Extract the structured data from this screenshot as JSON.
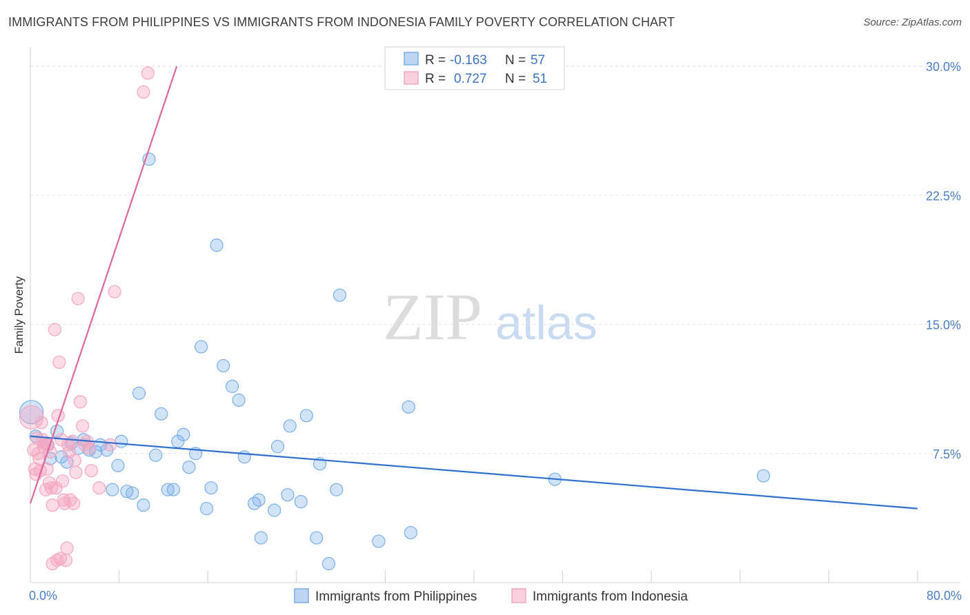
{
  "chart_data": {
    "type": "scatter",
    "title": "IMMIGRANTS FROM PHILIPPINES VS IMMIGRANTS FROM INDONESIA FAMILY POVERTY CORRELATION CHART",
    "source": "Source: ZipAtlas.com",
    "ylabel": "Family Poverty",
    "xlabel": "",
    "xlim": [
      0,
      80
    ],
    "ylim": [
      0,
      31
    ],
    "x_tick_labels": [
      "0.0%",
      "80.0%"
    ],
    "y_ticks": [
      {
        "value": 7.5,
        "label": "7.5%"
      },
      {
        "value": 15.0,
        "label": "15.0%"
      },
      {
        "value": 22.5,
        "label": "22.5%"
      },
      {
        "value": 30.0,
        "label": "30.0%"
      }
    ],
    "grid": true,
    "watermark": {
      "part1": "ZIP",
      "part2": "atlas"
    },
    "legend_stats": [
      {
        "r_label": "R =",
        "r_value": "-0.163",
        "n_label": "N =",
        "n_value": "57"
      },
      {
        "r_label": "R =",
        "r_value": "0.727",
        "n_label": "N =",
        "n_value": "51"
      }
    ],
    "series": [
      {
        "name": "Immigrants from Philippines",
        "color": "#7aaee8",
        "line_color": "#2f6fcf",
        "trend": {
          "x0": 0,
          "y0": 8.5,
          "x1": 80,
          "y1": 4.3
        },
        "points": [
          {
            "x": 0.1,
            "y": 9.9,
            "big": true
          },
          {
            "x": 0.5,
            "y": 8.5
          },
          {
            "x": 1.5,
            "y": 8.0
          },
          {
            "x": 1.8,
            "y": 7.2
          },
          {
            "x": 2.4,
            "y": 8.8
          },
          {
            "x": 2.8,
            "y": 7.3
          },
          {
            "x": 3.3,
            "y": 7.0
          },
          {
            "x": 3.7,
            "y": 8.1
          },
          {
            "x": 4.3,
            "y": 7.8
          },
          {
            "x": 4.8,
            "y": 8.3
          },
          {
            "x": 5.3,
            "y": 7.7
          },
          {
            "x": 5.9,
            "y": 7.6
          },
          {
            "x": 6.3,
            "y": 8.0
          },
          {
            "x": 6.9,
            "y": 7.7
          },
          {
            "x": 7.4,
            "y": 5.4
          },
          {
            "x": 7.9,
            "y": 6.8
          },
          {
            "x": 8.2,
            "y": 8.2
          },
          {
            "x": 8.7,
            "y": 5.3
          },
          {
            "x": 9.2,
            "y": 5.2
          },
          {
            "x": 9.8,
            "y": 11.0
          },
          {
            "x": 10.2,
            "y": 4.5
          },
          {
            "x": 10.7,
            "y": 24.6
          },
          {
            "x": 11.3,
            "y": 7.4
          },
          {
            "x": 11.8,
            "y": 9.8
          },
          {
            "x": 12.4,
            "y": 5.4
          },
          {
            "x": 12.9,
            "y": 5.4
          },
          {
            "x": 13.3,
            "y": 8.2
          },
          {
            "x": 13.8,
            "y": 8.6
          },
          {
            "x": 14.3,
            "y": 6.7
          },
          {
            "x": 14.9,
            "y": 7.5
          },
          {
            "x": 15.4,
            "y": 13.7
          },
          {
            "x": 15.9,
            "y": 4.3
          },
          {
            "x": 16.3,
            "y": 5.5
          },
          {
            "x": 16.8,
            "y": 19.6
          },
          {
            "x": 17.4,
            "y": 12.6
          },
          {
            "x": 18.2,
            "y": 11.4
          },
          {
            "x": 18.8,
            "y": 10.6
          },
          {
            "x": 19.3,
            "y": 7.3
          },
          {
            "x": 20.2,
            "y": 4.6
          },
          {
            "x": 20.6,
            "y": 4.8
          },
          {
            "x": 20.8,
            "y": 2.6
          },
          {
            "x": 22.0,
            "y": 4.2
          },
          {
            "x": 22.3,
            "y": 7.9
          },
          {
            "x": 23.2,
            "y": 5.1
          },
          {
            "x": 23.4,
            "y": 9.1
          },
          {
            "x": 24.4,
            "y": 4.7
          },
          {
            "x": 24.9,
            "y": 9.7
          },
          {
            "x": 25.8,
            "y": 2.6
          },
          {
            "x": 26.1,
            "y": 6.9
          },
          {
            "x": 26.9,
            "y": 1.1
          },
          {
            "x": 27.6,
            "y": 5.4
          },
          {
            "x": 27.9,
            "y": 16.7
          },
          {
            "x": 31.4,
            "y": 2.4
          },
          {
            "x": 34.1,
            "y": 10.2
          },
          {
            "x": 34.3,
            "y": 2.9
          },
          {
            "x": 47.3,
            "y": 6.0
          },
          {
            "x": 66.1,
            "y": 6.2
          }
        ]
      },
      {
        "name": "Immigrants from Indonesia",
        "color": "#f4a6c0",
        "line_color": "#e0679a",
        "trend": {
          "x0": 0,
          "y0": 4.6,
          "x1": 13.2,
          "y1": 30.0
        },
        "points": [
          {
            "x": 0.1,
            "y": 9.6,
            "big": true
          },
          {
            "x": 0.3,
            "y": 7.7
          },
          {
            "x": 0.4,
            "y": 6.6
          },
          {
            "x": 0.5,
            "y": 6.3
          },
          {
            "x": 0.6,
            "y": 8.4
          },
          {
            "x": 0.7,
            "y": 7.5
          },
          {
            "x": 0.8,
            "y": 7.2
          },
          {
            "x": 0.9,
            "y": 6.5
          },
          {
            "x": 1.0,
            "y": 9.3
          },
          {
            "x": 1.1,
            "y": 8.3
          },
          {
            "x": 1.2,
            "y": 7.9
          },
          {
            "x": 1.3,
            "y": 8.1
          },
          {
            "x": 1.4,
            "y": 5.4
          },
          {
            "x": 1.5,
            "y": 6.6
          },
          {
            "x": 1.6,
            "y": 8.0
          },
          {
            "x": 1.7,
            "y": 5.8
          },
          {
            "x": 1.8,
            "y": 7.6
          },
          {
            "x": 1.9,
            "y": 5.5
          },
          {
            "x": 2.0,
            "y": 4.5
          },
          {
            "x": 2.0,
            "y": 1.1
          },
          {
            "x": 2.2,
            "y": 14.7
          },
          {
            "x": 2.3,
            "y": 5.5
          },
          {
            "x": 2.4,
            "y": 1.3
          },
          {
            "x": 2.5,
            "y": 9.7
          },
          {
            "x": 2.6,
            "y": 12.8
          },
          {
            "x": 2.7,
            "y": 1.4
          },
          {
            "x": 2.8,
            "y": 8.3
          },
          {
            "x": 2.9,
            "y": 5.9
          },
          {
            "x": 3.0,
            "y": 4.8
          },
          {
            "x": 3.1,
            "y": 4.6
          },
          {
            "x": 3.2,
            "y": 1.3
          },
          {
            "x": 3.3,
            "y": 2.0
          },
          {
            "x": 3.4,
            "y": 8.0
          },
          {
            "x": 3.5,
            "y": 7.6
          },
          {
            "x": 3.6,
            "y": 4.8
          },
          {
            "x": 3.8,
            "y": 8.2
          },
          {
            "x": 3.9,
            "y": 4.6
          },
          {
            "x": 4.0,
            "y": 7.1
          },
          {
            "x": 4.1,
            "y": 6.4
          },
          {
            "x": 4.3,
            "y": 16.5
          },
          {
            "x": 4.5,
            "y": 10.5
          },
          {
            "x": 4.7,
            "y": 9.1
          },
          {
            "x": 4.9,
            "y": 8.0
          },
          {
            "x": 5.1,
            "y": 8.2
          },
          {
            "x": 5.3,
            "y": 7.8
          },
          {
            "x": 5.5,
            "y": 6.5
          },
          {
            "x": 6.2,
            "y": 5.5
          },
          {
            "x": 7.2,
            "y": 8.0
          },
          {
            "x": 7.6,
            "y": 16.9
          },
          {
            "x": 10.2,
            "y": 28.5
          },
          {
            "x": 10.6,
            "y": 29.6
          }
        ]
      }
    ]
  }
}
